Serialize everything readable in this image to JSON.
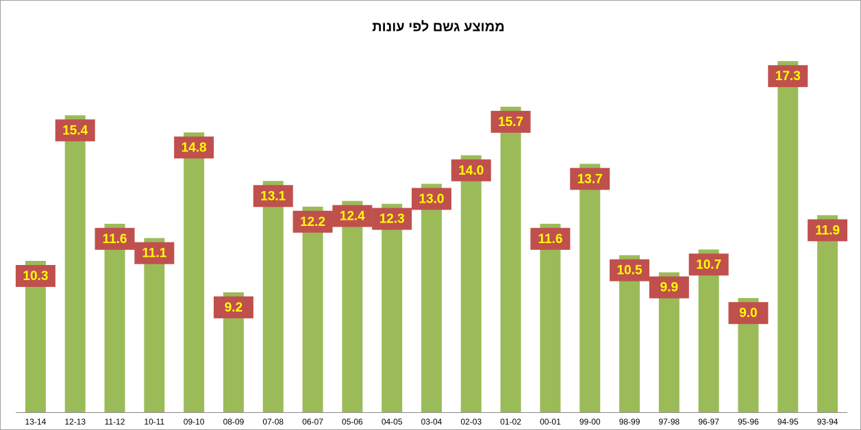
{
  "chart_data": {
    "type": "bar",
    "title": "ממוצע גשם לפי עונות",
    "categories": [
      "13-14",
      "12-13",
      "11-12",
      "10-11",
      "09-10",
      "08-09",
      "07-08",
      "06-07",
      "05-06",
      "04-05",
      "03-04",
      "02-03",
      "01-02",
      "00-01",
      "99-00",
      "98-99",
      "97-98",
      "96-97",
      "95-96",
      "94-95",
      "93-94"
    ],
    "values": [
      10.3,
      15.4,
      11.6,
      11.1,
      14.8,
      9.2,
      13.1,
      12.2,
      12.4,
      12.3,
      13.0,
      14.0,
      15.7,
      11.6,
      13.7,
      10.5,
      9.9,
      10.7,
      9.0,
      17.3,
      11.9
    ],
    "value_labels": [
      "10.3",
      "15.4",
      "11.6",
      "11.1",
      "14.8",
      "9.2",
      "13.1",
      "12.2",
      "12.4",
      "12.3",
      "13.0",
      "14.0",
      "15.7",
      "11.6",
      "13.7",
      "10.5",
      "9.9",
      "10.7",
      "9.0",
      "17.3",
      "11.9"
    ],
    "color": "#9bbb59",
    "label_color": "#c0504d",
    "label_text_color": "#ffff00",
    "ylim": [
      5,
      18
    ]
  }
}
